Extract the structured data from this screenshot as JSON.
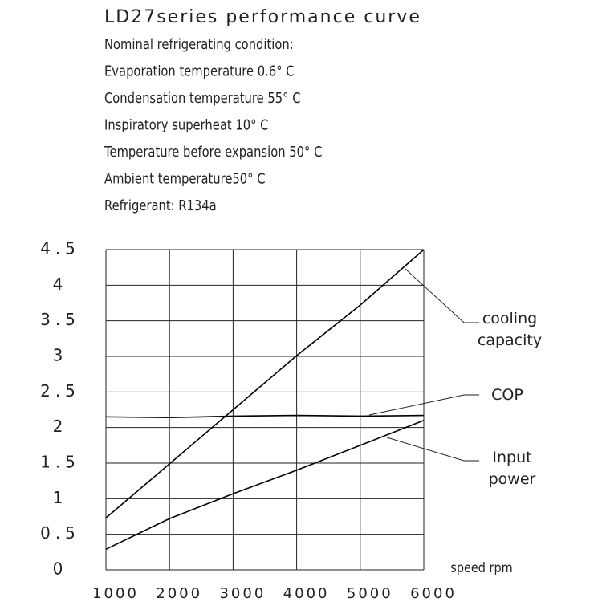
{
  "chart_data": {
    "type": "line",
    "title": "LD27series performance curve",
    "subtitle_lines": [
      "Nominal refrigerating condition:",
      "Evaporation temperature 0.6° C",
      "Condensation   temperature 55° C",
      "Inspiratory superheat 10° C",
      "Temperature before expansion 50° C",
      "Ambient  temperature50° C",
      "Refrigerant: R134a"
    ],
    "x_label": "speed rpm",
    "x": [
      1000,
      2000,
      3000,
      4000,
      5000,
      6000
    ],
    "series": [
      {
        "name": "cooling capacity",
        "color": "#000000",
        "values": [
          0.73,
          1.49,
          2.25,
          3.01,
          3.72,
          4.5
        ]
      },
      {
        "name": "COP",
        "color": "#000000",
        "values": [
          2.15,
          2.14,
          2.16,
          2.17,
          2.16,
          2.17
        ]
      },
      {
        "name": "Input power",
        "color": "#000000",
        "values": [
          0.29,
          0.72,
          1.07,
          1.4,
          1.75,
          2.1
        ]
      }
    ],
    "xlim": [
      1000,
      6000
    ],
    "xticks": [
      1000,
      2000,
      3000,
      4000,
      5000,
      6000
    ],
    "ylim": [
      0,
      4.5
    ],
    "yticks": [
      0,
      0.5,
      1,
      1.5,
      2,
      2.5,
      3,
      3.5,
      4,
      4.5
    ],
    "grid": true
  }
}
